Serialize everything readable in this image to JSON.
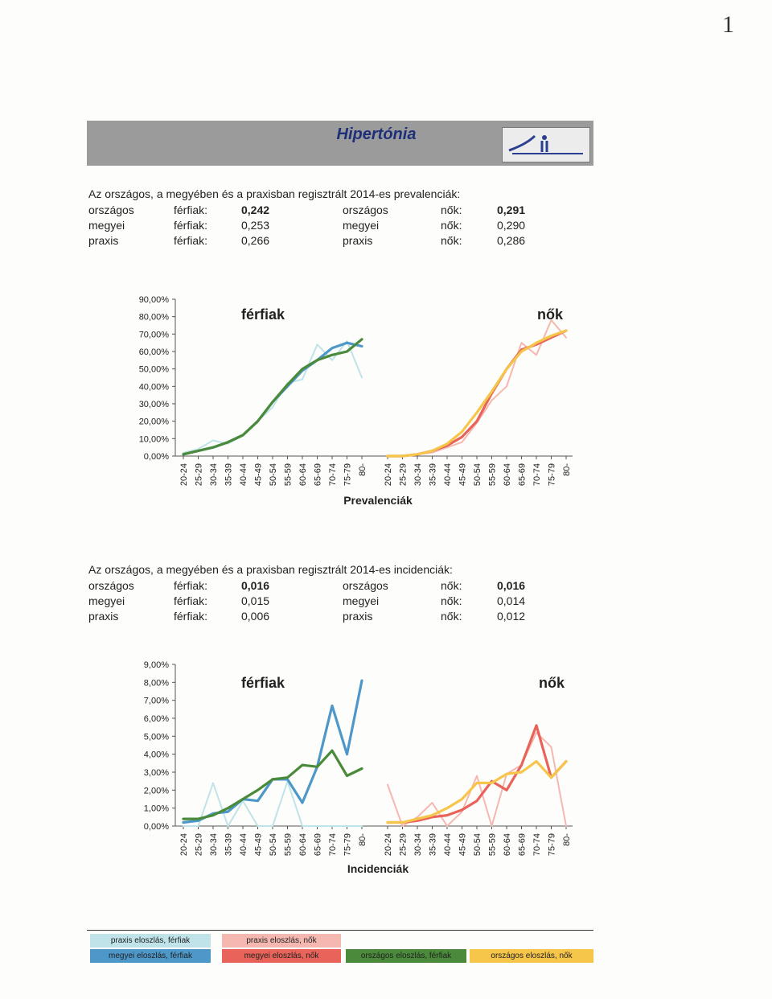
{
  "page_number": "1",
  "header": {
    "title": "Hipertónia",
    "logo": "hospital-logo"
  },
  "prevalence": {
    "intro": "Az országos, a megyében és a praxisban regisztrált 2014-es prevalenciák:",
    "rows": [
      {
        "level": "országos",
        "men_label": "férfiak:",
        "men_value": "0,242",
        "level2": "országos",
        "women_label": "nők:",
        "women_value": "0,291",
        "bold": true
      },
      {
        "level": "megyei",
        "men_label": "férfiak:",
        "men_value": "0,253",
        "level2": "megyei",
        "women_label": "nők:",
        "women_value": "0,290",
        "bold": false
      },
      {
        "level": "praxis",
        "men_label": "férfiak:",
        "men_value": "0,266",
        "level2": "praxis",
        "women_label": "nők:",
        "women_value": "0,286",
        "bold": false
      }
    ]
  },
  "incidence": {
    "intro": "Az országos, a megyében és a praxisban regisztrált 2014-es incidenciák:",
    "rows": [
      {
        "level": "országos",
        "men_label": "férfiak:",
        "men_value": "0,016",
        "level2": "országos",
        "women_label": "nők:",
        "women_value": "0,016",
        "bold": true
      },
      {
        "level": "megyei",
        "men_label": "férfiak:",
        "men_value": "0,015",
        "level2": "megyei",
        "women_label": "nők:",
        "women_value": "0,014",
        "bold": false
      },
      {
        "level": "praxis",
        "men_label": "férfiak:",
        "men_value": "0,006",
        "level2": "praxis",
        "women_label": "nők:",
        "women_value": "0,012",
        "bold": false
      }
    ]
  },
  "colors": {
    "praxis_men": "#bfe3e8",
    "megyei_men": "#4e97c9",
    "orszagos_men": "#4a8a3a",
    "praxis_women": "#f5b8b0",
    "megyei_women": "#e8635a",
    "orszagos_women": "#f5c64a"
  },
  "chart_data": [
    {
      "type": "line",
      "title": "Prevalenciák",
      "panel_labels": [
        "férfiak",
        "nők"
      ],
      "categories": [
        "20-24",
        "25-29",
        "30-34",
        "35-39",
        "40-44",
        "45-49",
        "50-54",
        "55-59",
        "60-64",
        "65-69",
        "70-74",
        "75-79",
        "80-"
      ],
      "y_ticks": [
        "0,00%",
        "10,00%",
        "20,00%",
        "30,00%",
        "40,00%",
        "50,00%",
        "60,00%",
        "70,00%",
        "80,00%",
        "90,00%"
      ],
      "ylim": [
        0,
        90
      ],
      "men": [
        {
          "name": "praxis eloszlás, férfiak",
          "color_key": "praxis_men",
          "values": [
            2,
            4,
            9,
            7,
            12,
            20,
            28,
            42,
            44,
            64,
            55,
            66,
            45
          ]
        },
        {
          "name": "megyei eloszlás, férfiak",
          "color_key": "megyei_men",
          "values": [
            1,
            3,
            5,
            8,
            12,
            20,
            31,
            40,
            49,
            55,
            62,
            65,
            63
          ]
        },
        {
          "name": "országos eloszlás, férfiak",
          "color_key": "orszagos_men",
          "values": [
            1,
            3,
            5,
            8,
            12,
            20,
            31,
            41,
            50,
            55,
            58,
            60,
            67
          ]
        }
      ],
      "women": [
        {
          "name": "praxis eloszlás, nők",
          "color_key": "praxis_women",
          "values": [
            0,
            0,
            1,
            2,
            5,
            8,
            19,
            32,
            40,
            65,
            58,
            78,
            68
          ]
        },
        {
          "name": "megyei eloszlás, nők",
          "color_key": "megyei_women",
          "values": [
            0,
            0,
            1,
            3,
            6,
            11,
            20,
            36,
            50,
            61,
            64,
            68,
            72
          ]
        },
        {
          "name": "országos eloszlás, nők",
          "color_key": "orszagos_women",
          "values": [
            0,
            0,
            1,
            3,
            7,
            14,
            25,
            37,
            50,
            60,
            65,
            69,
            72
          ]
        }
      ]
    },
    {
      "type": "line",
      "title": "Incidenciák",
      "panel_labels": [
        "férfiak",
        "nők"
      ],
      "categories": [
        "20-24",
        "25-29",
        "30-34",
        "35-39",
        "40-44",
        "45-49",
        "50-54",
        "55-59",
        "60-64",
        "65-69",
        "70-74",
        "75-79",
        "80-"
      ],
      "y_ticks": [
        "0,00%",
        "1,00%",
        "2,00%",
        "3,00%",
        "4,00%",
        "5,00%",
        "6,00%",
        "7,00%",
        "8,00%",
        "9,00%"
      ],
      "ylim": [
        0,
        9
      ],
      "men": [
        {
          "name": "praxis eloszlás, férfiak",
          "color_key": "praxis_men",
          "values": [
            0,
            0,
            2.4,
            0,
            1.4,
            0,
            0,
            2.5,
            0,
            0,
            0,
            0,
            0
          ]
        },
        {
          "name": "megyei eloszlás, férfiak",
          "color_key": "megyei_men",
          "values": [
            0.2,
            0.3,
            0.7,
            0.8,
            1.5,
            1.4,
            2.6,
            2.6,
            1.3,
            3.3,
            6.7,
            4.0,
            8.1
          ]
        },
        {
          "name": "országos eloszlás, férfiak",
          "color_key": "orszagos_men",
          "values": [
            0.4,
            0.4,
            0.6,
            1.0,
            1.5,
            2.0,
            2.6,
            2.7,
            3.4,
            3.3,
            4.2,
            2.8,
            3.2
          ]
        }
      ],
      "women": [
        {
          "name": "praxis eloszlás, nők",
          "color_key": "praxis_women",
          "values": [
            2.3,
            0,
            0.5,
            1.3,
            0,
            0.8,
            2.8,
            0,
            2.9,
            3.4,
            5.2,
            4.4,
            0
          ]
        },
        {
          "name": "megyei eloszlás, nők",
          "color_key": "megyei_women",
          "values": [
            0.2,
            0.2,
            0.3,
            0.5,
            0.6,
            0.9,
            1.4,
            2.5,
            2.0,
            3.4,
            5.6,
            2.7,
            3.6
          ]
        },
        {
          "name": "országos eloszlás, nők",
          "color_key": "orszagos_women",
          "values": [
            0.2,
            0.2,
            0.4,
            0.6,
            1.0,
            1.5,
            2.4,
            2.4,
            2.9,
            3.0,
            3.6,
            2.7,
            3.6
          ]
        }
      ]
    }
  ],
  "legend": [
    {
      "label": "praxis eloszlás, férfiak",
      "color_key": "praxis_men"
    },
    {
      "label": "praxis eloszlás, nők",
      "color_key": "praxis_women"
    },
    {
      "label": "megyei eloszlás, férfiak",
      "color_key": "megyei_men"
    },
    {
      "label": "megyei eloszlás, nők",
      "color_key": "megyei_women"
    },
    {
      "label": "országos eloszlás, férfiak",
      "color_key": "orszagos_men"
    },
    {
      "label": "országos eloszlás, nők",
      "color_key": "orszagos_women"
    }
  ]
}
